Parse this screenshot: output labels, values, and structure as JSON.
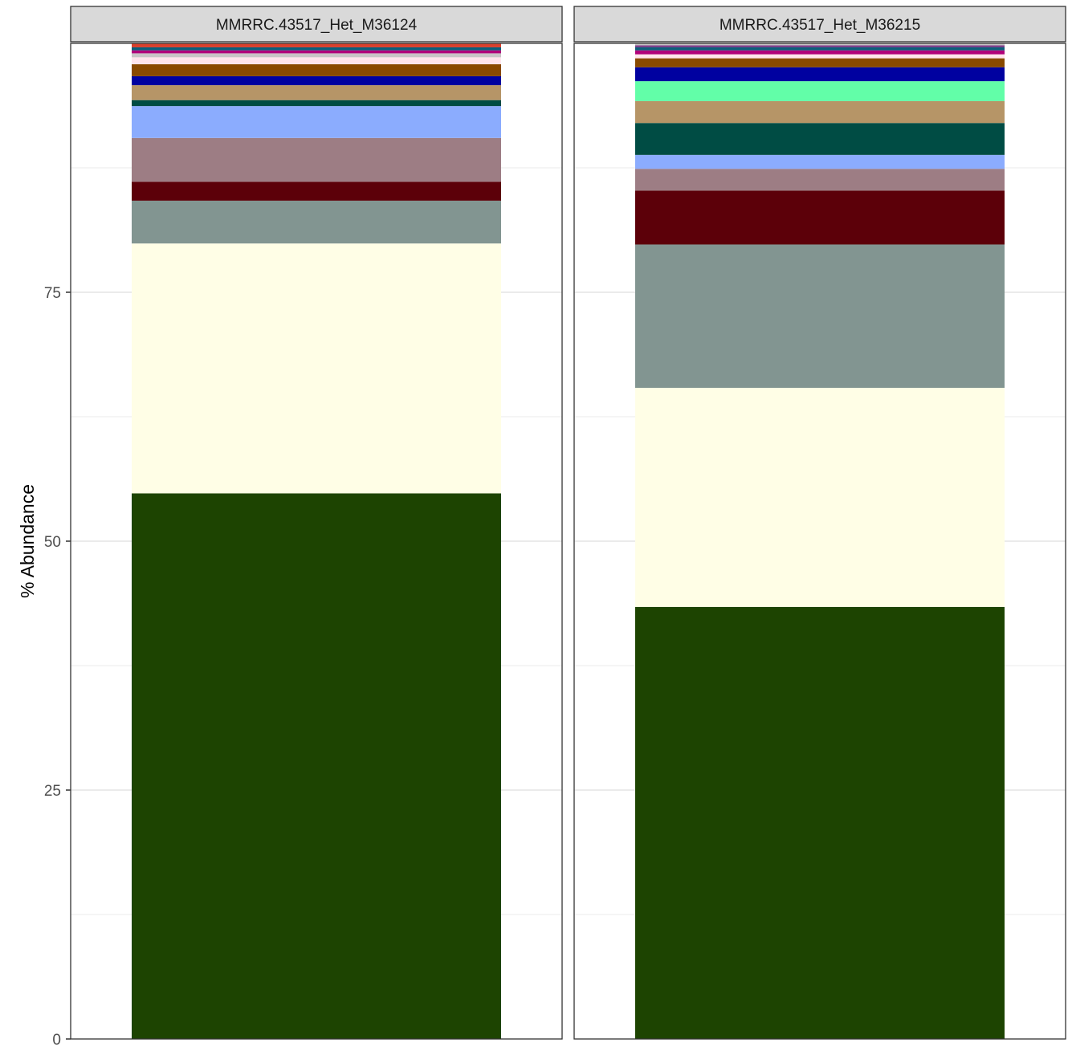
{
  "chart_data": {
    "type": "bar",
    "stacked": true,
    "ylabel": "% Abundance",
    "ylim": [
      0,
      100
    ],
    "y_ticks": [
      "0",
      "25",
      "50",
      "75"
    ],
    "y_tick_values": [
      0,
      25,
      50,
      75
    ],
    "grid": true,
    "legend": "none",
    "panels": [
      {
        "title": "MMRRC.43517_Het_M36124",
        "segments": [
          {
            "value": 54.8,
            "color": "#1d4401"
          },
          {
            "value": 25.1,
            "color": "#fffee6"
          },
          {
            "value": 4.3,
            "color": "#829591"
          },
          {
            "value": 1.9,
            "color": "#5c0009"
          },
          {
            "value": 4.4,
            "color": "#9d7d84"
          },
          {
            "value": 3.2,
            "color": "#8bacfe"
          },
          {
            "value": 0.6,
            "color": "#004c44"
          },
          {
            "value": 1.5,
            "color": "#b69567"
          },
          {
            "value": 0.9,
            "color": "#0001a0"
          },
          {
            "value": 1.2,
            "color": "#894a00"
          },
          {
            "value": 0.7,
            "color": "#ffe5ec"
          },
          {
            "value": 0.4,
            "color": "#c8c4c6"
          },
          {
            "value": 0.3,
            "color": "#b0007a"
          },
          {
            "value": 0.3,
            "color": "#0b5e7a"
          },
          {
            "value": 0.4,
            "color": "#d9402c"
          }
        ]
      },
      {
        "title": "MMRRC.43517_Het_M36215",
        "segments": [
          {
            "value": 43.4,
            "color": "#1d4401"
          },
          {
            "value": 22.0,
            "color": "#fffee6"
          },
          {
            "value": 14.4,
            "color": "#829591"
          },
          {
            "value": 5.4,
            "color": "#5c0009"
          },
          {
            "value": 2.2,
            "color": "#9d7d84"
          },
          {
            "value": 1.4,
            "color": "#8bacfe"
          },
          {
            "value": 3.2,
            "color": "#004c44"
          },
          {
            "value": 2.2,
            "color": "#b69567"
          },
          {
            "value": 2.0,
            "color": "#62fea8"
          },
          {
            "value": 1.4,
            "color": "#0001a0"
          },
          {
            "value": 0.9,
            "color": "#894a00"
          },
          {
            "value": 0.4,
            "color": "#ffe5ec"
          },
          {
            "value": 0.4,
            "color": "#b0007a"
          },
          {
            "value": 0.3,
            "color": "#0b5e7a"
          },
          {
            "value": 0.2,
            "color": "#7a3e8a"
          },
          {
            "value": 0.2,
            "color": "#c8c4c6"
          }
        ]
      }
    ]
  }
}
